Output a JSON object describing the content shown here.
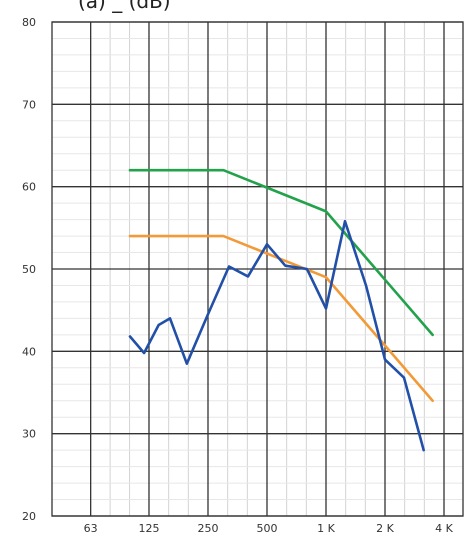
{
  "header_fragment": "(a) _ (dB)",
  "chart_data": {
    "type": "line",
    "xscale": "log2",
    "x_ticks": [
      {
        "value": 63,
        "label": "63"
      },
      {
        "value": 125,
        "label": "125"
      },
      {
        "value": 250,
        "label": "250"
      },
      {
        "value": 500,
        "label": "500"
      },
      {
        "value": 1000,
        "label": "1 K"
      },
      {
        "value": 2000,
        "label": "2 K"
      },
      {
        "value": 4000,
        "label": "4 K"
      }
    ],
    "xlim": [
      40,
      5000
    ],
    "ylim": [
      20,
      80
    ],
    "y_ticks": [
      20,
      30,
      40,
      50,
      60,
      70,
      80
    ],
    "grid": true,
    "series": [
      {
        "color": "#22a24a",
        "points": [
          [
            100,
            62
          ],
          [
            300,
            62
          ],
          [
            1000,
            57
          ],
          [
            3500,
            42
          ]
        ]
      },
      {
        "color": "#f39a38",
        "points": [
          [
            100,
            54
          ],
          [
            300,
            54
          ],
          [
            1000,
            49
          ],
          [
            3500,
            34
          ]
        ]
      },
      {
        "color": "#2250a8",
        "points": [
          [
            100,
            41.8
          ],
          [
            118,
            39.8
          ],
          [
            140,
            43.2
          ],
          [
            160,
            44.0
          ],
          [
            195,
            38.5
          ],
          [
            250,
            44.5
          ],
          [
            320,
            50.3
          ],
          [
            400,
            49.1
          ],
          [
            500,
            53.0
          ],
          [
            620,
            50.4
          ],
          [
            800,
            50.0
          ],
          [
            1000,
            45.2
          ],
          [
            1250,
            55.8
          ],
          [
            1600,
            48.0
          ],
          [
            2000,
            39.0
          ],
          [
            2500,
            36.8
          ],
          [
            3150,
            28.0
          ]
        ]
      }
    ]
  }
}
